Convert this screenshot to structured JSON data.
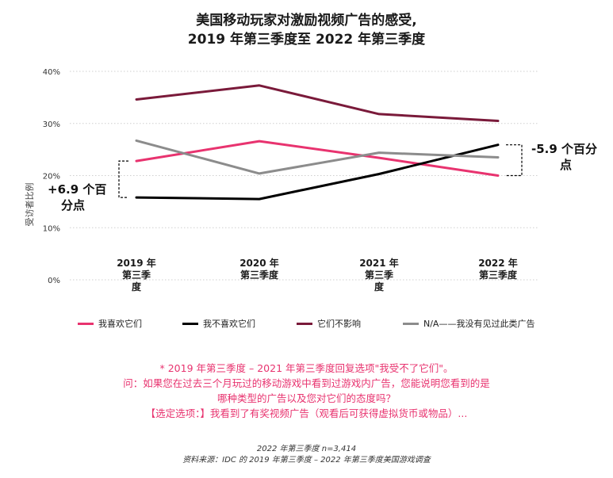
{
  "title_line1": "美国移动玩家对激励视频广告的感受,",
  "title_line2": "2019 年第三季度至 2022 年第三季度",
  "notes": {
    "line1": "* 2019 年第三季度 – 2021 年第三季度回复选项\"我受不了它们\"。",
    "line2": "问：如果您在过去三个月玩过的移动游戏中看到过游戏内广告，您能说明您看到的是",
    "line3": "哪种类型的广告以及您对它们的态度吗？",
    "line4": "【选定选项：】我看到了有奖视频广告（观看后可获得虚拟货币或物品）..."
  },
  "footer": {
    "line1": "2022 年第三季度 n=3,414",
    "line2": "资料来源：IDC 的 2019 年第三季度 – 2022 年第三季度美国游戏调查"
  },
  "chart_data": {
    "type": "line",
    "ylabel": "受访者比例",
    "ylim": [
      0,
      40
    ],
    "y_ticks": [
      0,
      10,
      20,
      30,
      40
    ],
    "y_tick_labels": [
      "0%",
      "10%",
      "20%",
      "30%",
      "40%"
    ],
    "grid": true,
    "legend_position": "bottom",
    "categories": [
      [
        "2019 年",
        "第三季",
        "度"
      ],
      [
        "2020 年",
        "第三季度"
      ],
      [
        "2021 年",
        "第三季",
        "度"
      ],
      [
        "2022 年",
        "第三季度"
      ]
    ],
    "series": [
      {
        "name": "我喜欢它们",
        "color": "#e8336f",
        "values": [
          22.8,
          26.6,
          23.4,
          20.0
        ]
      },
      {
        "name": "我不喜欢它们",
        "color": "#000000",
        "values": [
          15.8,
          15.5,
          20.3,
          25.9
        ]
      },
      {
        "name": "它们不影响",
        "color": "#7a1a3a",
        "values": [
          34.6,
          37.3,
          31.8,
          30.5
        ]
      },
      {
        "name": "N/A——我没有见过此类广告",
        "color": "#8c8c8c",
        "values": [
          26.7,
          20.4,
          24.4,
          23.5
        ]
      }
    ],
    "annotations": [
      {
        "label_line1": "+6.9 个百",
        "label_line2": "分点"
      },
      {
        "label_line1": "-5.9 个百分",
        "label_line2": "点"
      }
    ]
  }
}
